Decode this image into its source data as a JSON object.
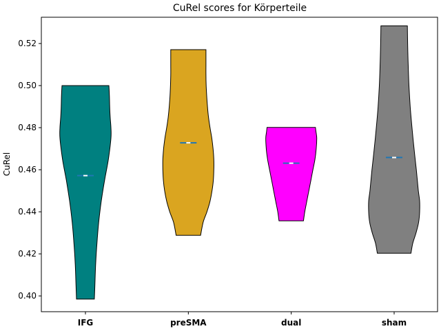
{
  "chart_data": {
    "type": "violin",
    "title": "CuRel scores for Körperteile",
    "xlabel": "",
    "ylabel": "CuRel",
    "ylim": [
      0.3925,
      0.5325
    ],
    "yticks": [
      "0.40",
      "0.42",
      "0.44",
      "0.46",
      "0.48",
      "0.50",
      "0.52"
    ],
    "categories": [
      "IFG",
      "preSMA",
      "dual",
      "sham"
    ],
    "series": [
      {
        "category": "IFG",
        "color": "#008080",
        "min": 0.3985,
        "max": 0.5,
        "median": 0.4572,
        "profile": [
          [
            0.3985,
            0.35
          ],
          [
            0.405,
            0.37
          ],
          [
            0.415,
            0.4
          ],
          [
            0.425,
            0.45
          ],
          [
            0.435,
            0.52
          ],
          [
            0.445,
            0.62
          ],
          [
            0.455,
            0.75
          ],
          [
            0.465,
            0.9
          ],
          [
            0.475,
            1.0
          ],
          [
            0.48,
            1.0
          ],
          [
            0.485,
            0.97
          ],
          [
            0.49,
            0.95
          ],
          [
            0.495,
            0.94
          ],
          [
            0.5,
            0.92
          ]
        ]
      },
      {
        "category": "preSMA",
        "color": "#DAA520",
        "min": 0.4288,
        "max": 0.5171,
        "median": 0.4728,
        "profile": [
          [
            0.4288,
            0.48
          ],
          [
            0.435,
            0.58
          ],
          [
            0.44,
            0.73
          ],
          [
            0.445,
            0.85
          ],
          [
            0.45,
            0.93
          ],
          [
            0.455,
            0.98
          ],
          [
            0.46,
            1.0
          ],
          [
            0.465,
            1.0
          ],
          [
            0.47,
            0.97
          ],
          [
            0.475,
            0.92
          ],
          [
            0.48,
            0.85
          ],
          [
            0.485,
            0.79
          ],
          [
            0.49,
            0.75
          ],
          [
            0.495,
            0.72
          ],
          [
            0.5,
            0.7
          ],
          [
            0.505,
            0.69
          ],
          [
            0.51,
            0.69
          ],
          [
            0.5171,
            0.69
          ]
        ]
      },
      {
        "category": "dual",
        "color": "#FF00FF",
        "min": 0.4357,
        "max": 0.4801,
        "median": 0.4631,
        "profile": [
          [
            0.4357,
            0.48
          ],
          [
            0.44,
            0.53
          ],
          [
            0.445,
            0.61
          ],
          [
            0.45,
            0.69
          ],
          [
            0.455,
            0.77
          ],
          [
            0.46,
            0.85
          ],
          [
            0.465,
            0.93
          ],
          [
            0.47,
            0.98
          ],
          [
            0.475,
            1.0
          ],
          [
            0.478,
            0.97
          ],
          [
            0.4801,
            0.95
          ]
        ]
      },
      {
        "category": "sham",
        "color": "#808080",
        "min": 0.4203,
        "max": 0.5284,
        "median": 0.4658,
        "profile": [
          [
            0.4203,
            0.66
          ],
          [
            0.425,
            0.73
          ],
          [
            0.43,
            0.86
          ],
          [
            0.435,
            0.96
          ],
          [
            0.44,
            1.0
          ],
          [
            0.445,
            1.0
          ],
          [
            0.45,
            0.95
          ],
          [
            0.46,
            0.87
          ],
          [
            0.47,
            0.78
          ],
          [
            0.48,
            0.7
          ],
          [
            0.49,
            0.63
          ],
          [
            0.5,
            0.58
          ],
          [
            0.51,
            0.55
          ],
          [
            0.52,
            0.53
          ],
          [
            0.5284,
            0.52
          ]
        ]
      }
    ],
    "grid": false,
    "legend": "none"
  }
}
